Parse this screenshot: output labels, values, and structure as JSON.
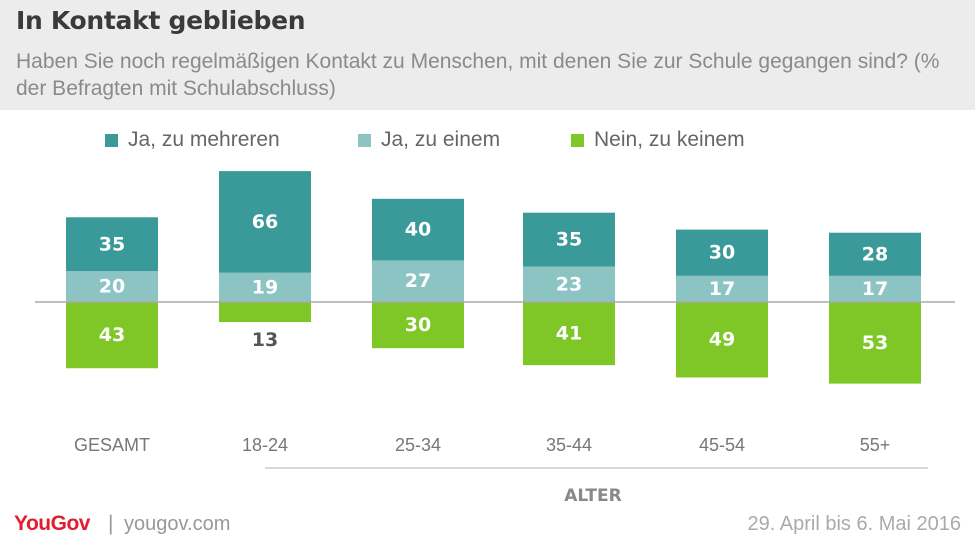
{
  "header": {
    "title": "In Kontakt geblieben",
    "subtitle": "Haben Sie noch regelmäßigen Kontakt zu Menschen, mit denen Sie zur Schule gegangen sind? (% der Befragten mit Schulabschluss)"
  },
  "legend": [
    {
      "label": "Ja, zu mehreren",
      "color": "#3a9a9a"
    },
    {
      "label": "Ja, zu einem",
      "color": "#8cc4c4"
    },
    {
      "label": "Nein, zu keinem",
      "color": "#7ec726"
    }
  ],
  "chart_data": {
    "type": "bar",
    "stacked": "diverging",
    "categories": [
      "GESAMT",
      "18-24",
      "25-34",
      "35-44",
      "45-54",
      "55+"
    ],
    "group_label": "ALTER",
    "series": [
      {
        "name": "Ja, zu mehreren",
        "values": [
          35,
          66,
          40,
          35,
          30,
          28
        ],
        "color": "#3a9a9a",
        "direction": "up"
      },
      {
        "name": "Ja, zu einem",
        "values": [
          20,
          19,
          27,
          23,
          17,
          17
        ],
        "color": "#8cc4c4",
        "direction": "up"
      },
      {
        "name": "Nein, zu keinem",
        "values": [
          43,
          13,
          30,
          41,
          49,
          53
        ],
        "color": "#7ec726",
        "direction": "down"
      }
    ],
    "baseline_line": true,
    "legend_position": "top"
  },
  "footer": {
    "brand": "YouGov",
    "separator": "|",
    "site": "yougov.com",
    "date": "29. April bis 6. Mai 2016"
  },
  "colors": {
    "header_bg": "#ececec",
    "label_on_bar": "#ffffff",
    "label_outside": "#555555",
    "brand": "#e01e2e"
  }
}
